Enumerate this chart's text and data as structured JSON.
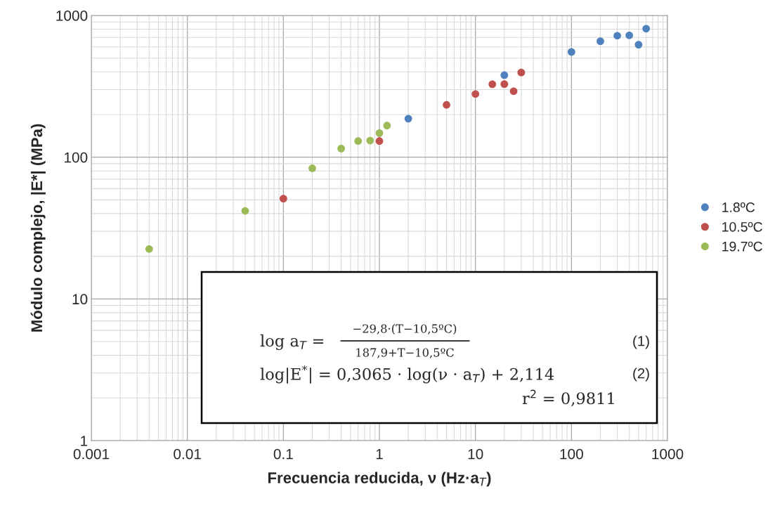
{
  "chart_data": {
    "type": "scatter",
    "xlabel": "Frecuencia reducida, ν (Hz·a$_{T}$)",
    "ylabel": "Módulo complejo, |E*| (MPa)",
    "log": "xy",
    "grid": true,
    "legend": "right",
    "marker": "circle",
    "xlim": [
      0.001,
      1000
    ],
    "ylim": [
      1,
      1000
    ],
    "xticks": [
      0.001,
      0.01,
      0.1,
      1,
      10,
      100,
      1000
    ],
    "yticks": [
      1,
      10,
      100,
      1000
    ],
    "series": [
      {
        "name": "1.8ºC",
        "color": "#4f81bd",
        "x": [
          2,
          20,
          100,
          200,
          300,
          400,
          500,
          600
        ],
        "values": [
          187,
          379,
          553,
          658,
          720,
          724,
          622,
          807
        ]
      },
      {
        "name": "10.5ºC",
        "color": "#c0504d",
        "x": [
          0.1,
          1,
          5,
          10,
          15,
          20,
          25,
          30
        ],
        "values": [
          51,
          130,
          234,
          279,
          327,
          328,
          292,
          396
        ]
      },
      {
        "name": "19.7ºC",
        "color": "#9bbb59",
        "x": [
          0.004,
          0.04,
          0.2,
          0.4,
          0.6,
          0.8,
          1,
          1.2
        ],
        "values": [
          22.5,
          41.8,
          83.5,
          115,
          130,
          131,
          148,
          167
        ]
      }
    ],
    "annotations": [
      "log a$_{T}$ =",
      "−29,8·(T−10,5ºC)",
      "187,9+T−10,5ºC",
      "(1)",
      "log|E$^{*}$| = 0,3065 · log(ν · a$_{T}$) + 2,114",
      "(2)",
      "r$^{2}$ = 0,9811"
    ]
  }
}
